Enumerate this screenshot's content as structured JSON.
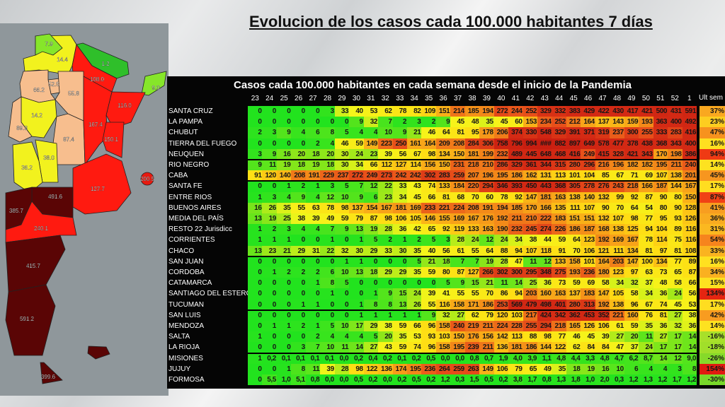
{
  "title": "Evolucion de los casos cada 100.000 habitantes 7 días",
  "map": {
    "values": [
      "7.9",
      "14.4",
      "1.2",
      "108.0",
      "9.0",
      "52.5",
      "66.2",
      "55.8",
      "116.0",
      "14.2",
      "167.4",
      "89.3",
      "87.4",
      "150.1",
      "38.0",
      "36.2",
      "200.5",
      "491.6",
      "127.7",
      "385.7",
      "240.1",
      "415.7",
      "591.2",
      "399.6"
    ]
  },
  "chart_data": {
    "type": "heatmap",
    "title": "Casos cada 100.000 habitantes en cada semana desde el inicio de la Pandemia",
    "last_col_header": "Ult sem",
    "weeks": [
      "23",
      "24",
      "25",
      "26",
      "27",
      "28",
      "29",
      "30",
      "31",
      "32",
      "33",
      "34",
      "35",
      "36",
      "37",
      "38",
      "39",
      "40",
      "41",
      "42",
      "43",
      "44",
      "45",
      "46",
      "47",
      "48",
      "49",
      "50",
      "51",
      "52",
      "1"
    ],
    "group_ends": [
      4,
      6,
      13,
      18,
      22
    ],
    "colors": {
      "low": "#22e31e",
      "mid": "#f5f51a",
      "high": "#d42a14"
    },
    "rows": [
      {
        "name": "SANTA CRUZ",
        "values": [
          "0",
          "0",
          "0",
          "0",
          "0",
          "3",
          "33",
          "40",
          "53",
          "62",
          "78",
          "82",
          "109",
          "151",
          "214",
          "185",
          "194",
          "272",
          "244",
          "252",
          "329",
          "332",
          "383",
          "429",
          "422",
          "430",
          "417",
          "421",
          "500",
          "431",
          "591"
        ],
        "ult": "37%"
      },
      {
        "name": "LA PAMPA",
        "values": [
          "0",
          "0",
          "0",
          "0",
          "0",
          "0",
          "0",
          "9",
          "32",
          "7",
          "2",
          "3",
          "2",
          "9",
          "45",
          "48",
          "35",
          "45",
          "60",
          "153",
          "234",
          "252",
          "212",
          "164",
          "137",
          "143",
          "159",
          "193",
          "363",
          "400",
          "492"
        ],
        "ult": "23%"
      },
      {
        "name": "CHUBUT",
        "values": [
          "2",
          "3",
          "9",
          "4",
          "6",
          "8",
          "5",
          "4",
          "4",
          "10",
          "9",
          "21",
          "46",
          "64",
          "81",
          "95",
          "178",
          "206",
          "374",
          "330",
          "548",
          "329",
          "391",
          "371",
          "319",
          "237",
          "300",
          "255",
          "333",
          "283",
          "416"
        ],
        "ult": "47%"
      },
      {
        "name": "TIERRA DEL FUEGO",
        "values": [
          "0",
          "0",
          "0",
          "0",
          "2",
          "4",
          "46",
          "59",
          "149",
          "223",
          "250",
          "161",
          "164",
          "209",
          "208",
          "284",
          "306",
          "758",
          "796",
          "994",
          "###",
          "882",
          "897",
          "649",
          "578",
          "477",
          "378",
          "438",
          "368",
          "343",
          "400"
        ],
        "ult": "16%"
      },
      {
        "name": "NEUQUEN",
        "values": [
          "3",
          "9",
          "16",
          "20",
          "18",
          "20",
          "30",
          "24",
          "23",
          "39",
          "56",
          "67",
          "98",
          "134",
          "150",
          "181",
          "199",
          "232",
          "489",
          "445",
          "648",
          "468",
          "416",
          "249",
          "415",
          "328",
          "421",
          "343",
          "170",
          "198",
          "386"
        ],
        "ult": "94%"
      },
      {
        "name": "RIO NEGRO",
        "values": [
          "9",
          "11",
          "19",
          "18",
          "19",
          "18",
          "30",
          "34",
          "66",
          "112",
          "127",
          "114",
          "156",
          "150",
          "231",
          "218",
          "210",
          "286",
          "329",
          "361",
          "344",
          "315",
          "280",
          "296",
          "216",
          "196",
          "182",
          "182",
          "195",
          "211",
          "240"
        ],
        "ult": "14%"
      },
      {
        "name": "CABA",
        "values": [
          "91",
          "120",
          "140",
          "208",
          "191",
          "229",
          "237",
          "272",
          "249",
          "273",
          "242",
          "242",
          "302",
          "283",
          "259",
          "207",
          "196",
          "195",
          "186",
          "162",
          "131",
          "113",
          "101",
          "104",
          "85",
          "67",
          "71",
          "69",
          "107",
          "138",
          "201"
        ],
        "ult": "45%"
      },
      {
        "name": "SANTA FE",
        "values": [
          "0",
          "0",
          "1",
          "2",
          "1",
          "3",
          "5",
          "7",
          "12",
          "22",
          "33",
          "43",
          "74",
          "133",
          "184",
          "220",
          "294",
          "346",
          "393",
          "450",
          "443",
          "368",
          "305",
          "278",
          "276",
          "243",
          "218",
          "166",
          "187",
          "144",
          "167"
        ],
        "ult": "17%"
      },
      {
        "name": "ENTRE RIOS",
        "values": [
          "1",
          "3",
          "4",
          "9",
          "4",
          "12",
          "10",
          "9",
          "6",
          "23",
          "34",
          "45",
          "66",
          "81",
          "68",
          "70",
          "60",
          "78",
          "92",
          "147",
          "181",
          "163",
          "138",
          "140",
          "132",
          "99",
          "92",
          "87",
          "90",
          "80",
          "150"
        ],
        "ult": "87%"
      },
      {
        "name": "BUENOS AIRES",
        "values": [
          "16",
          "26",
          "35",
          "55",
          "63",
          "78",
          "98",
          "137",
          "154",
          "167",
          "181",
          "169",
          "233",
          "221",
          "224",
          "208",
          "191",
          "194",
          "185",
          "170",
          "166",
          "135",
          "111",
          "107",
          "90",
          "70",
          "64",
          "54",
          "80",
          "90",
          "128"
        ],
        "ult": "41%"
      },
      {
        "name": "MEDIA DEL PAÍS",
        "values": [
          "13",
          "19",
          "25",
          "38",
          "39",
          "49",
          "59",
          "79",
          "87",
          "98",
          "106",
          "105",
          "146",
          "155",
          "169",
          "167",
          "176",
          "192",
          "211",
          "210",
          "222",
          "183",
          "151",
          "151",
          "132",
          "107",
          "98",
          "77",
          "95",
          "93",
          "126"
        ],
        "ult": "36%"
      },
      {
        "name": "RESTO 22 Jurisdicc",
        "values": [
          "1",
          "2",
          "3",
          "4",
          "4",
          "7",
          "9",
          "13",
          "19",
          "28",
          "36",
          "42",
          "65",
          "92",
          "119",
          "133",
          "163",
          "190",
          "232",
          "245",
          "274",
          "226",
          "186",
          "187",
          "168",
          "138",
          "125",
          "94",
          "104",
          "89",
          "116"
        ],
        "ult": "31%"
      },
      {
        "name": "CORRIENTES",
        "values": [
          "1",
          "1",
          "1",
          "0",
          "0",
          "1",
          "0",
          "1",
          "5",
          "2",
          "1",
          "2",
          "5",
          "3",
          "28",
          "24",
          "12",
          "24",
          "34",
          "38",
          "44",
          "59",
          "64",
          "123",
          "192",
          "169",
          "167",
          "78",
          "114",
          "75",
          "116"
        ],
        "ult": "54%"
      },
      {
        "name": "CHACO",
        "values": [
          "13",
          "23",
          "21",
          "29",
          "31",
          "22",
          "32",
          "30",
          "29",
          "33",
          "30",
          "35",
          "40",
          "56",
          "61",
          "55",
          "64",
          "88",
          "94",
          "107",
          "118",
          "91",
          "70",
          "106",
          "121",
          "111",
          "134",
          "81",
          "97",
          "81",
          "108"
        ],
        "ult": "33%"
      },
      {
        "name": "SAN JUAN",
        "values": [
          "0",
          "0",
          "0",
          "0",
          "0",
          "0",
          "1",
          "1",
          "0",
          "0",
          "0",
          "5",
          "21",
          "18",
          "7",
          "7",
          "19",
          "28",
          "47",
          "11",
          "12",
          "133",
          "158",
          "101",
          "164",
          "203",
          "147",
          "100",
          "134",
          "77",
          "89"
        ],
        "ult": "16%"
      },
      {
        "name": "CORDOBA",
        "values": [
          "0",
          "1",
          "2",
          "2",
          "2",
          "6",
          "10",
          "13",
          "18",
          "29",
          "29",
          "35",
          "59",
          "80",
          "87",
          "127",
          "266",
          "302",
          "300",
          "295",
          "348",
          "275",
          "193",
          "236",
          "180",
          "123",
          "97",
          "63",
          "73",
          "65",
          "87"
        ],
        "ult": "34%"
      },
      {
        "name": "CATAMARCA",
        "values": [
          "0",
          "0",
          "0",
          "0",
          "1",
          "8",
          "5",
          "0",
          "0",
          "0",
          "0",
          "0",
          "0",
          "5",
          "9",
          "15",
          "21",
          "11",
          "14",
          "25",
          "36",
          "73",
          "59",
          "69",
          "58",
          "34",
          "32",
          "37",
          "48",
          "58",
          "66"
        ],
        "ult": "15%"
      },
      {
        "name": "SANTIAGO DEL ESTERO",
        "values": [
          "0",
          "0",
          "0",
          "0",
          "0",
          "1",
          "0",
          "0",
          "1",
          "9",
          "15",
          "24",
          "39",
          "41",
          "55",
          "55",
          "70",
          "86",
          "94",
          "203",
          "160",
          "163",
          "137",
          "183",
          "147",
          "105",
          "58",
          "34",
          "36",
          "24",
          "56"
        ],
        "ult": "134%"
      },
      {
        "name": "TUCUMAN",
        "values": [
          "0",
          "0",
          "0",
          "1",
          "1",
          "0",
          "0",
          "1",
          "8",
          "8",
          "13",
          "26",
          "55",
          "116",
          "158",
          "171",
          "186",
          "253",
          "569",
          "479",
          "498",
          "401",
          "280",
          "313",
          "192",
          "138",
          "96",
          "67",
          "74",
          "45",
          "53"
        ],
        "ult": "17%"
      },
      {
        "name": "SAN LUIS",
        "values": [
          "0",
          "0",
          "0",
          "0",
          "0",
          "0",
          "0",
          "1",
          "1",
          "1",
          "1",
          "1",
          "9",
          "32",
          "27",
          "62",
          "79",
          "120",
          "103",
          "217",
          "424",
          "342",
          "362",
          "453",
          "352",
          "221",
          "160",
          "76",
          "81",
          "27",
          "38"
        ],
        "ult": "42%"
      },
      {
        "name": "MENDOZA",
        "values": [
          "0",
          "1",
          "1",
          "2",
          "1",
          "5",
          "10",
          "17",
          "29",
          "38",
          "59",
          "66",
          "96",
          "158",
          "240",
          "219",
          "211",
          "224",
          "228",
          "255",
          "294",
          "218",
          "165",
          "126",
          "106",
          "61",
          "59",
          "35",
          "36",
          "32",
          "36"
        ],
        "ult": "14%"
      },
      {
        "name": "SALTA",
        "values": [
          "1",
          "0",
          "0",
          "0",
          "2",
          "4",
          "4",
          "4",
          "5",
          "20",
          "35",
          "53",
          "93",
          "103",
          "150",
          "176",
          "156",
          "142",
          "113",
          "88",
          "98",
          "77",
          "46",
          "45",
          "39",
          "27",
          "20",
          "11",
          "27",
          "17",
          "14"
        ],
        "ult": "-16%"
      },
      {
        "name": "LA RIOJA",
        "values": [
          "0",
          "0",
          "0",
          "3",
          "7",
          "10",
          "11",
          "14",
          "27",
          "43",
          "59",
          "74",
          "96",
          "158",
          "195",
          "239",
          "211",
          "136",
          "181",
          "186",
          "144",
          "122",
          "62",
          "84",
          "84",
          "47",
          "37",
          "24",
          "17",
          "17",
          "14"
        ],
        "ult": "-18%"
      },
      {
        "name": "MISIONES",
        "values": [
          "1",
          "0,2",
          "0,1",
          "0,1",
          "0,1",
          "0,1",
          "0,0",
          "0,2",
          "0,4",
          "0,2",
          "0,1",
          "0,2",
          "0,5",
          "0,0",
          "0,0",
          "0,8",
          "0,7",
          "1,9",
          "4,0",
          "3,9",
          "1,1",
          "4,8",
          "4,4",
          "3,3",
          "4,8",
          "4,7",
          "6,2",
          "8,7",
          "14",
          "12",
          "9,0"
        ],
        "ult": "-26%"
      },
      {
        "name": "JUJUY",
        "values": [
          "0",
          "0",
          "1",
          "8",
          "11",
          "39",
          "28",
          "98",
          "122",
          "136",
          "174",
          "195",
          "236",
          "264",
          "259",
          "263",
          "149",
          "106",
          "79",
          "65",
          "49",
          "35",
          "18",
          "19",
          "16",
          "10",
          "6",
          "4",
          "4",
          "3",
          "8"
        ],
        "ult": "154%"
      },
      {
        "name": "FORMOSA",
        "values": [
          "0",
          "5,5",
          "1,0",
          "5,1",
          "0,8",
          "0,0",
          "0,0",
          "0,5",
          "0,2",
          "0,0",
          "0,2",
          "0,5",
          "0,2",
          "1,2",
          "0,3",
          "1,5",
          "0,5",
          "0,2",
          "3,8",
          "1,7",
          "0,8",
          "1,3",
          "1,8",
          "1,0",
          "2,0",
          "0,3",
          "1,2",
          "1,3",
          "1,2",
          "1,7",
          "1,2"
        ],
        "ult": "-30%"
      }
    ]
  }
}
